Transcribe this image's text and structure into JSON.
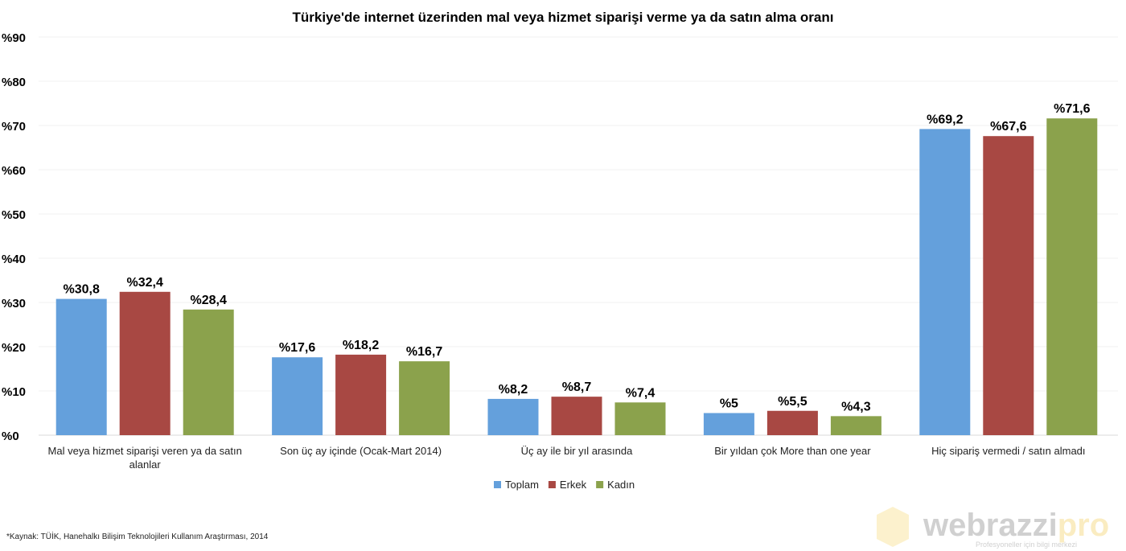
{
  "chart_data": {
    "type": "bar",
    "title": "Türkiye'de internet üzerinden mal veya hizmet siparişi verme ya da satın alma oranı",
    "categories": [
      [
        "Mal veya hizmet siparişi veren ya da satın",
        "alanlar"
      ],
      [
        "Son üç ay içinde (Ocak-Mart 2014)"
      ],
      [
        "Üç ay ile bir yıl arasında"
      ],
      [
        "Bir yıldan çok More than one year"
      ],
      [
        "Hiç sipariş vermedi / satın almadı"
      ]
    ],
    "series": [
      {
        "name": "Toplam",
        "color": "#64a0dc",
        "values": [
          30.8,
          17.6,
          8.2,
          5,
          69.2
        ],
        "labels": [
          "%30,8",
          "%17,6",
          "%8,2",
          "%5",
          "%69,2"
        ]
      },
      {
        "name": "Erkek",
        "color": "#a84843",
        "values": [
          32.4,
          18.2,
          8.7,
          5.5,
          67.6
        ],
        "labels": [
          "%32,4",
          "%18,2",
          "%8,7",
          "%5,5",
          "%67,6"
        ]
      },
      {
        "name": "Kadın",
        "color": "#8ba24c",
        "values": [
          28.4,
          16.7,
          7.4,
          4.3,
          71.6
        ],
        "labels": [
          "%28,4",
          "%16,7",
          "%7,4",
          "%4,3",
          "%71,6"
        ]
      }
    ],
    "ylim": [
      0,
      90
    ],
    "yticks": [
      0,
      10,
      20,
      30,
      40,
      50,
      60,
      70,
      80,
      90
    ],
    "ytick_labels": [
      "%0",
      "%10",
      "%20",
      "%30",
      "%40",
      "%50",
      "%60",
      "%70",
      "%80",
      "%90"
    ],
    "grid": true,
    "legend": "bottom"
  },
  "footer": {
    "source": "*Kaynak: TÜİK, Hanehalkı Bilişim Teknolojileri Kullanım Araştırması, 2014"
  },
  "watermark": {
    "brand": "webrazzipro",
    "tagline": "Profesyoneller için bilgi merkezi"
  }
}
